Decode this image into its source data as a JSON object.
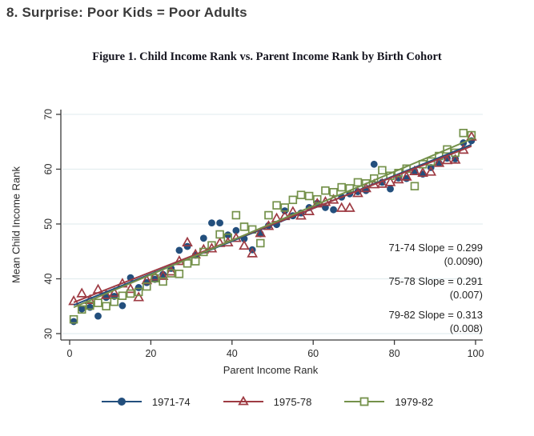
{
  "page": {
    "heading": "8. Surprise: Poor Kids = Poor Adults"
  },
  "figure": {
    "title": "Figure 1. Child Income Rank vs. Parent Income Rank by Birth Cohort"
  },
  "chart_data": {
    "type": "scatter",
    "title": "Figure 1. Child Income Rank vs. Parent Income Rank by Birth Cohort",
    "xlabel": "Parent Income Rank",
    "ylabel": "Mean Child Income Rank",
    "xlim": [
      0,
      100
    ],
    "ylim": [
      30,
      70
    ],
    "xticks": [
      0,
      20,
      40,
      60,
      80,
      100
    ],
    "yticks": [
      30,
      40,
      50,
      60,
      70
    ],
    "grid": "horizontal-only",
    "legend_position": "bottom",
    "style": {
      "grid_color": "#e3edf0",
      "axis_color": "#3a3a3a",
      "text_color": "#2b2b2b"
    },
    "annotations": [
      {
        "lines": [
          "71-74 Slope = 0.299",
          "(0.0090)"
        ]
      },
      {
        "lines": [
          "75-78 Slope = 0.291",
          "(0.007)"
        ]
      },
      {
        "lines": [
          "79-82 Slope = 0.313",
          "(0.008)"
        ]
      }
    ],
    "x": [
      1,
      3,
      5,
      7,
      9,
      11,
      13,
      15,
      17,
      19,
      21,
      23,
      25,
      27,
      29,
      31,
      33,
      35,
      37,
      39,
      41,
      43,
      45,
      47,
      49,
      51,
      53,
      55,
      57,
      59,
      61,
      63,
      65,
      67,
      69,
      71,
      73,
      75,
      77,
      79,
      81,
      83,
      85,
      87,
      89,
      91,
      93,
      95,
      97,
      99
    ],
    "series": [
      {
        "name": "1971-74",
        "marker": "circle-filled",
        "color": "#234f7d",
        "values": [
          32.2,
          34.5,
          34.8,
          33.2,
          36.6,
          36.8,
          35.1,
          40.2,
          38.4,
          39.3,
          39.9,
          40.8,
          41.9,
          45.2,
          45.9,
          44.3,
          47.4,
          50.2,
          50.2,
          48.0,
          48.8,
          47.3,
          45.3,
          48.2,
          49.7,
          49.9,
          52.4,
          51.5,
          52.0,
          53.0,
          53.8,
          53.0,
          52.6,
          54.9,
          55.5,
          55.9,
          56.1,
          60.9,
          57.6,
          56.4,
          58.4,
          58.3,
          59.6,
          59.1,
          60.3,
          61.1,
          62.0,
          61.9,
          64.8,
          65.2
        ],
        "fit_line": {
          "x1": 1,
          "y1": 35.2,
          "x2": 99,
          "y2": 64.5
        }
      },
      {
        "name": "1975-78",
        "marker": "triangle-open",
        "color": "#9e3b43",
        "values": [
          35.9,
          37.3,
          36.1,
          38.0,
          37.0,
          37.4,
          39.1,
          38.1,
          36.6,
          39.7,
          40.4,
          40.5,
          41.3,
          43.2,
          46.6,
          44.4,
          45.3,
          45.5,
          46.5,
          46.6,
          47.4,
          46.0,
          44.6,
          48.3,
          49.6,
          51.0,
          51.4,
          52.2,
          51.5,
          52.3,
          53.7,
          54.0,
          54.4,
          52.9,
          52.9,
          55.6,
          56.5,
          57.2,
          57.3,
          57.6,
          58.1,
          58.6,
          59.6,
          59.3,
          59.5,
          61.1,
          61.6,
          61.7,
          63.5,
          65.9
        ],
        "fit_line": {
          "x1": 1,
          "y1": 35.7,
          "x2": 99,
          "y2": 64.2
        }
      },
      {
        "name": "1979-82",
        "marker": "square-open",
        "color": "#74914a",
        "values": [
          32.6,
          34.4,
          35.1,
          35.6,
          35.0,
          35.8,
          36.9,
          37.3,
          37.6,
          38.6,
          40.1,
          39.5,
          41.0,
          40.9,
          42.8,
          43.2,
          44.9,
          46.1,
          48.1,
          47.5,
          51.6,
          49.5,
          49.0,
          46.5,
          51.6,
          53.4,
          53.0,
          54.4,
          55.3,
          55.1,
          54.5,
          56.1,
          55.8,
          56.7,
          56.5,
          57.6,
          57.4,
          58.3,
          59.8,
          58.8,
          59.3,
          60.1,
          56.9,
          60.9,
          61.4,
          62.4,
          63.6,
          63.0,
          66.6,
          66.2
        ],
        "fit_line": {
          "x1": 1,
          "y1": 34.8,
          "x2": 99,
          "y2": 65.5
        }
      }
    ]
  }
}
